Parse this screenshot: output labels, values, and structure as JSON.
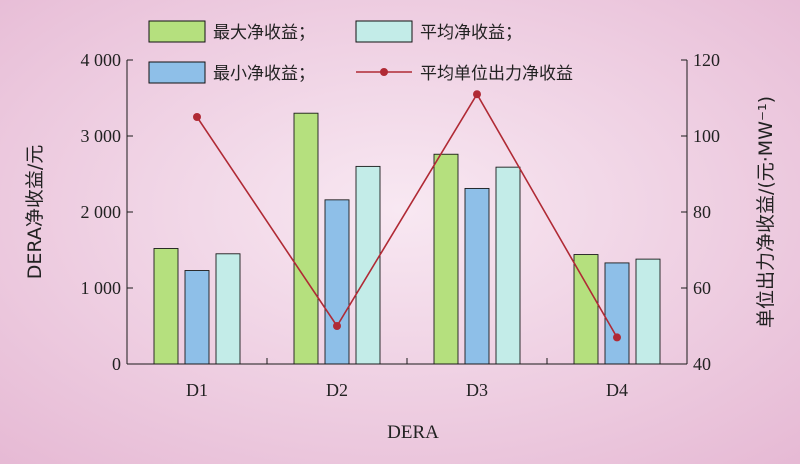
{
  "chart_data": {
    "type": "bar",
    "categories": [
      "D1",
      "D2",
      "D3",
      "D4"
    ],
    "xlabel": "DERA",
    "ylabel": "DERA净收益/元",
    "ylabel_right": "单位出力净收益/(元·MW⁻¹)",
    "ylim": [
      0,
      4000
    ],
    "ylim_right": [
      40,
      120
    ],
    "yticks": [
      "0",
      "1 000",
      "2 000",
      "3 000",
      "4 000"
    ],
    "yticks_right": [
      "40",
      "60",
      "80",
      "100",
      "120"
    ],
    "series": [
      {
        "name": "最大净收益；",
        "type": "bar",
        "color": "#b5e07e",
        "values": [
          1520,
          3300,
          2760,
          1440
        ]
      },
      {
        "name": "最小净收益；",
        "type": "bar",
        "color": "#8ebfe8",
        "values": [
          1230,
          2160,
          2310,
          1330
        ]
      },
      {
        "name": "平均净收益；",
        "type": "bar",
        "color": "#c3ece8",
        "values": [
          1450,
          2600,
          2590,
          1380
        ]
      },
      {
        "name": "平均单位出力净收益",
        "type": "line",
        "axis": "right",
        "color": "#b02a35",
        "values": [
          105,
          50,
          111,
          47
        ]
      }
    ],
    "grid": false,
    "legend_position": "top"
  }
}
